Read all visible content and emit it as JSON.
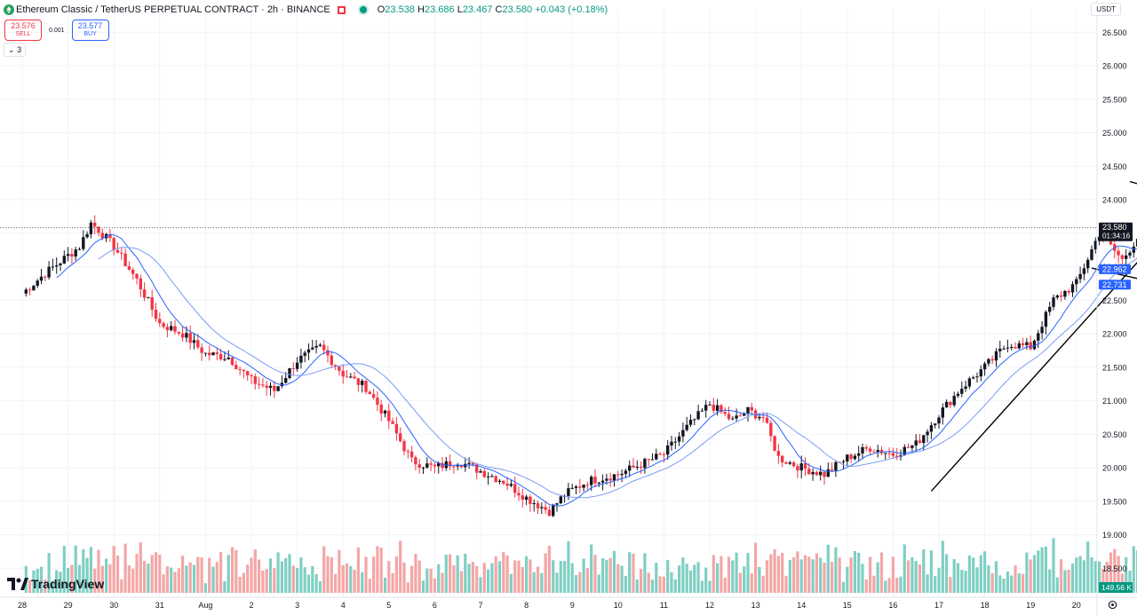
{
  "header": {
    "symbol_title": "Ethereum Classic / TetherUS PERPETUAL CONTRACT · 2h · BINANCE",
    "ohlc": {
      "o_label": "O",
      "o": "23.538",
      "h_label": "H",
      "h": "23.686",
      "l_label": "L",
      "l": "23.467",
      "c_label": "C",
      "c": "23.580",
      "change": "+0.043 (+0.18%)"
    }
  },
  "trade": {
    "sell_price": "23.576",
    "sell_label": "SELL",
    "spread": "0.001",
    "buy_price": "23.577",
    "buy_label": "BUY"
  },
  "indicators_toggle": "3",
  "currency": "USDT",
  "branding": "TradingView",
  "colors": {
    "up": "#089981",
    "down": "#f23645",
    "vol_up": "#7fcfc3",
    "vol_down": "#f4a6a6",
    "ma": "#2962ff",
    "ma_light": "#7a9cf5",
    "line": "#000000"
  },
  "price_tags": {
    "last": "23.580",
    "countdown": "01:34:16",
    "ma1": "22.962",
    "ma2": "22.731",
    "volume": "149.56 K"
  },
  "chart_data": {
    "type": "candlestick",
    "timeframe": "2h",
    "y_ticks": [
      "18.500",
      "19.000",
      "19.500",
      "20.000",
      "20.500",
      "21.000",
      "21.500",
      "22.000",
      "22.500",
      "23.000",
      "23.500",
      "24.000",
      "24.500",
      "25.000",
      "25.500",
      "26.000",
      "26.500"
    ],
    "y_range": [
      18.3,
      26.7
    ],
    "x_ticks": [
      "28",
      "29",
      "30",
      "31",
      "Aug",
      "2",
      "3",
      "4",
      "5",
      "6",
      "7",
      "8",
      "9",
      "10",
      "11",
      "12",
      "13",
      "14",
      "15",
      "16",
      "17",
      "18",
      "19",
      "20"
    ],
    "price_anchors": [
      {
        "t": 0,
        "p": 22.6
      },
      {
        "t": 6,
        "p": 22.9
      },
      {
        "t": 15,
        "p": 23.3
      },
      {
        "t": 18,
        "p": 23.65
      },
      {
        "t": 20,
        "p": 23.55
      },
      {
        "t": 24,
        "p": 23.3
      },
      {
        "t": 30,
        "p": 22.8
      },
      {
        "t": 36,
        "p": 22.15
      },
      {
        "t": 42,
        "p": 22.0
      },
      {
        "t": 48,
        "p": 21.7
      },
      {
        "t": 54,
        "p": 21.65
      },
      {
        "t": 60,
        "p": 21.3
      },
      {
        "t": 66,
        "p": 21.15
      },
      {
        "t": 72,
        "p": 21.6
      },
      {
        "t": 78,
        "p": 21.8
      },
      {
        "t": 84,
        "p": 21.4
      },
      {
        "t": 90,
        "p": 21.2
      },
      {
        "t": 96,
        "p": 20.7
      },
      {
        "t": 102,
        "p": 20.1
      },
      {
        "t": 108,
        "p": 20.0
      },
      {
        "t": 114,
        "p": 20.1
      },
      {
        "t": 120,
        "p": 19.95
      },
      {
        "t": 126,
        "p": 19.8
      },
      {
        "t": 132,
        "p": 19.55
      },
      {
        "t": 138,
        "p": 19.35
      },
      {
        "t": 142,
        "p": 19.6
      },
      {
        "t": 148,
        "p": 19.8
      },
      {
        "t": 156,
        "p": 19.9
      },
      {
        "t": 162,
        "p": 20.05
      },
      {
        "t": 168,
        "p": 20.2
      },
      {
        "t": 174,
        "p": 20.6
      },
      {
        "t": 180,
        "p": 20.95
      },
      {
        "t": 186,
        "p": 20.7
      },
      {
        "t": 190,
        "p": 20.85
      },
      {
        "t": 194,
        "p": 20.75
      },
      {
        "t": 198,
        "p": 20.15
      },
      {
        "t": 204,
        "p": 20.0
      },
      {
        "t": 210,
        "p": 19.9
      },
      {
        "t": 216,
        "p": 20.15
      },
      {
        "t": 222,
        "p": 20.3
      },
      {
        "t": 228,
        "p": 20.2
      },
      {
        "t": 234,
        "p": 20.35
      },
      {
        "t": 240,
        "p": 20.8
      },
      {
        "t": 246,
        "p": 21.2
      },
      {
        "t": 252,
        "p": 21.5
      },
      {
        "t": 258,
        "p": 21.85
      },
      {
        "t": 264,
        "p": 21.8
      },
      {
        "t": 270,
        "p": 22.5
      },
      {
        "t": 276,
        "p": 22.75
      },
      {
        "t": 282,
        "p": 23.5
      },
      {
        "t": 288,
        "p": 23.1
      },
      {
        "t": 294,
        "p": 23.6
      },
      {
        "t": 298,
        "p": 23.75
      },
      {
        "t": 302,
        "p": 23.3
      },
      {
        "t": 308,
        "p": 22.9
      },
      {
        "t": 314,
        "p": 23.2
      },
      {
        "t": 320,
        "p": 23.1
      },
      {
        "t": 326,
        "p": 23.45
      },
      {
        "t": 332,
        "p": 22.8
      },
      {
        "t": 338,
        "p": 22.4
      },
      {
        "t": 344,
        "p": 22.35
      },
      {
        "t": 350,
        "p": 22.4
      },
      {
        "t": 354,
        "p": 22.05
      },
      {
        "t": 358,
        "p": 22.75
      },
      {
        "t": 362,
        "p": 23.55
      },
      {
        "t": 366,
        "p": 23.62
      }
    ],
    "ma_periods": [
      9,
      20
    ],
    "drawn_lines": [
      {
        "name": "rising-trendline",
        "from": {
          "t": 238,
          "p": 19.65
        },
        "to": {
          "t": 308,
          "p": 24.08
        }
      },
      {
        "name": "channel-upper",
        "from": {
          "t": 290,
          "p": 24.27
        },
        "to": {
          "t": 386,
          "p": 22.78
        }
      },
      {
        "name": "channel-lower",
        "from": {
          "t": 280,
          "p": 22.98
        },
        "to": {
          "t": 376,
          "p": 21.72
        }
      }
    ],
    "last_price_line": 23.58,
    "grid": true
  }
}
